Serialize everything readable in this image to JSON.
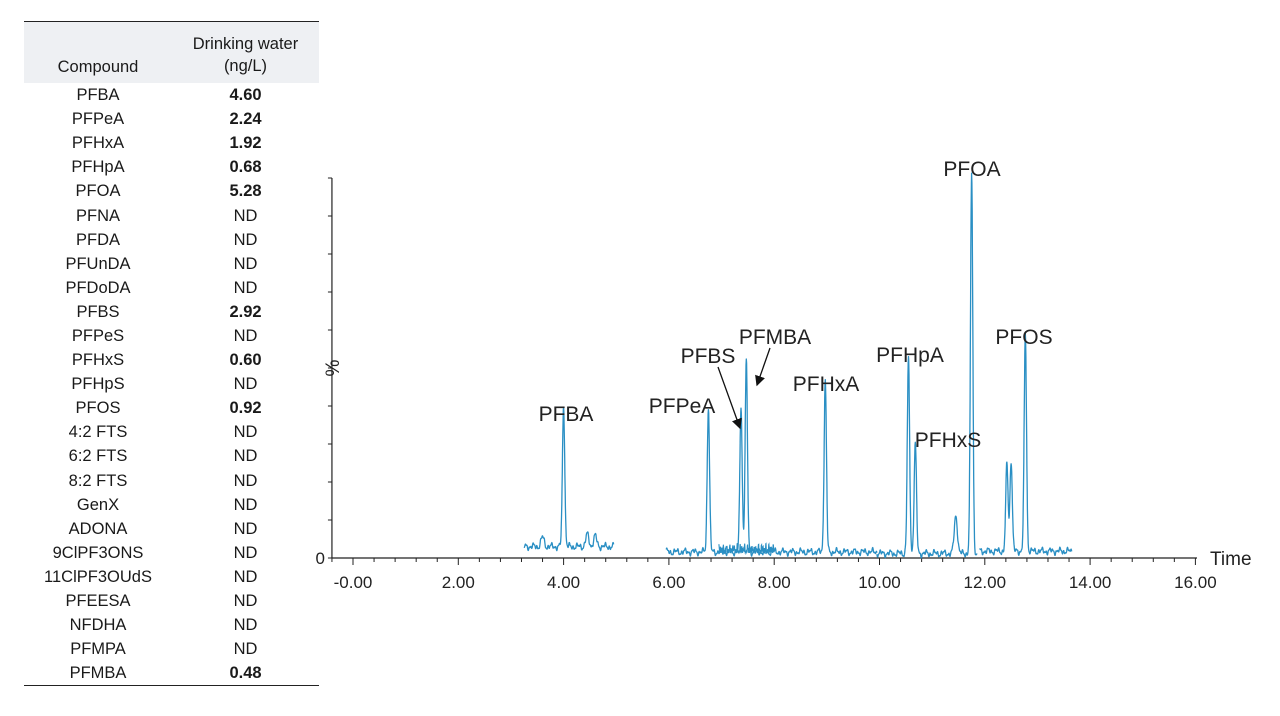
{
  "table": {
    "header": {
      "compound": "Compound",
      "water_line1": "Drinking water",
      "water_line2": "(ng/L)"
    },
    "rows": [
      {
        "compound": "PFBA",
        "value": "4.60",
        "bold": true
      },
      {
        "compound": "PFPeA",
        "value": "2.24",
        "bold": true
      },
      {
        "compound": "PFHxA",
        "value": "1.92",
        "bold": true
      },
      {
        "compound": "PFHpA",
        "value": "0.68",
        "bold": true
      },
      {
        "compound": "PFOA",
        "value": "5.28",
        "bold": true
      },
      {
        "compound": "PFNA",
        "value": "ND",
        "bold": false
      },
      {
        "compound": "PFDA",
        "value": "ND",
        "bold": false
      },
      {
        "compound": "PFUnDA",
        "value": "ND",
        "bold": false
      },
      {
        "compound": "PFDoDA",
        "value": "ND",
        "bold": false
      },
      {
        "compound": "PFBS",
        "value": "2.92",
        "bold": true
      },
      {
        "compound": "PFPeS",
        "value": "ND",
        "bold": false
      },
      {
        "compound": "PFHxS",
        "value": "0.60",
        "bold": true
      },
      {
        "compound": "PFHpS",
        "value": "ND",
        "bold": false
      },
      {
        "compound": "PFOS",
        "value": "0.92",
        "bold": true
      },
      {
        "compound": "4:2 FTS",
        "value": "ND",
        "bold": false
      },
      {
        "compound": "6:2 FTS",
        "value": "ND",
        "bold": false
      },
      {
        "compound": "8:2 FTS",
        "value": "ND",
        "bold": false
      },
      {
        "compound": "GenX",
        "value": "ND",
        "bold": false
      },
      {
        "compound": "ADONA",
        "value": "ND",
        "bold": false
      },
      {
        "compound": "9ClPF3ONS",
        "value": "ND",
        "bold": false
      },
      {
        "compound": "11ClPF3OUdS",
        "value": "ND",
        "bold": false
      },
      {
        "compound": "PFEESA",
        "value": "ND",
        "bold": false
      },
      {
        "compound": "NFDHA",
        "value": "ND",
        "bold": false
      },
      {
        "compound": "PFMPA",
        "value": "ND",
        "bold": false
      },
      {
        "compound": "PFMBA",
        "value": "0.48",
        "bold": true
      }
    ]
  },
  "chart_data": {
    "type": "line",
    "xlabel": "Time",
    "ylabel": "%",
    "xlim": [
      -0.4,
      16.0
    ],
    "ylim": [
      0,
      100
    ],
    "x_ticks": [
      "-0.00",
      "2.00",
      "4.00",
      "6.00",
      "8.00",
      "10.00",
      "12.00",
      "14.00",
      "16.00"
    ],
    "x_tick_values": [
      0,
      2,
      4,
      6,
      8,
      10,
      12,
      14,
      16
    ],
    "y_tick_label": "0",
    "line_color": "#2a8fc4",
    "segments": [
      {
        "x_range": [
          3.25,
          4.95
        ],
        "baseline": 3.0
      },
      {
        "x_range": [
          5.95,
          9.95
        ],
        "baseline": 1.6
      },
      {
        "x_range": [
          9.95,
          11.85
        ],
        "baseline": 1.2
      },
      {
        "x_range": [
          11.9,
          13.65
        ],
        "baseline": 1.8
      }
    ],
    "peaks": [
      {
        "label": "PFBA",
        "rt": 4.0,
        "height": 37
      },
      {
        "label": "PFPeA",
        "rt": 6.75,
        "height": 38
      },
      {
        "label": "PFBS",
        "rt": 7.37,
        "height": 38
      },
      {
        "label": "PFMBA",
        "rt": 7.47,
        "height": 50
      },
      {
        "label": "PFHxA",
        "rt": 8.97,
        "height": 45
      },
      {
        "label": "PFHpA",
        "rt": 10.55,
        "height": 51
      },
      {
        "label": "PFHxS",
        "rt": 10.68,
        "height": 29
      },
      {
        "label": "PFOA",
        "rt": 11.75,
        "height": 100
      },
      {
        "label": "PFOS",
        "rt": 12.77,
        "height": 57
      }
    ],
    "minor_peaks": [
      {
        "rt": 3.6,
        "height": 2.5
      },
      {
        "rt": 4.45,
        "height": 3.2
      },
      {
        "rt": 4.6,
        "height": 2.8
      },
      {
        "rt": 11.45,
        "height": 10
      },
      {
        "rt": 12.42,
        "height": 23
      },
      {
        "rt": 12.5,
        "height": 24
      }
    ]
  }
}
